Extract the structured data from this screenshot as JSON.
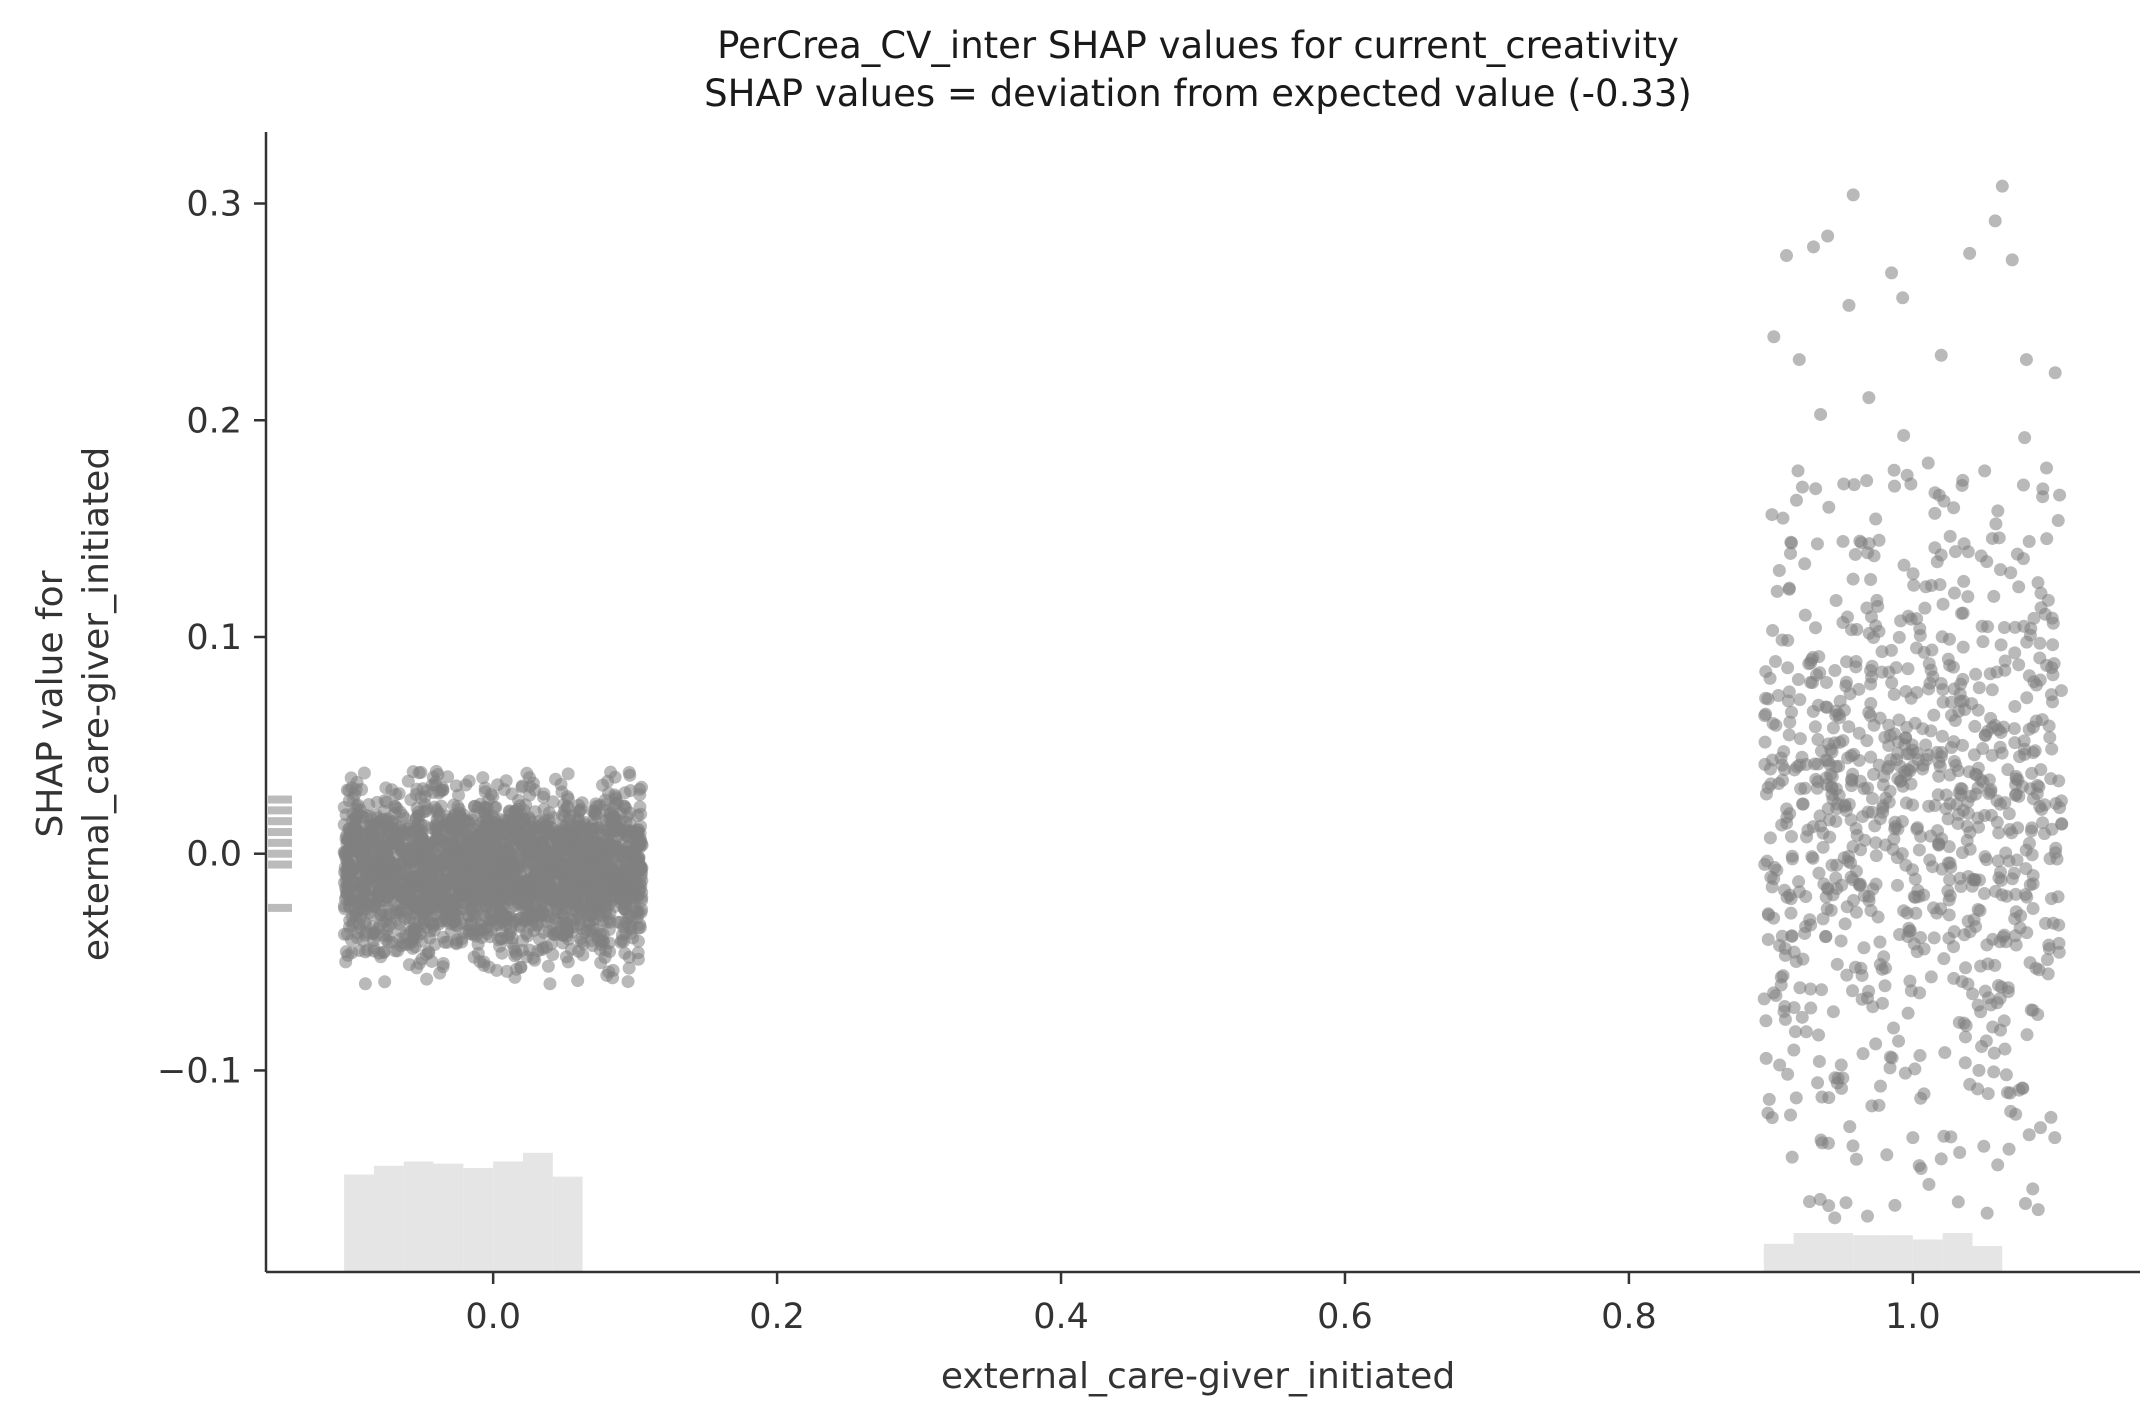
{
  "chart_data": {
    "type": "scatter",
    "title": "PerCrea_CV_inter SHAP values for current_creativity",
    "subtitle": "SHAP values = deviation from expected value (-0.33)",
    "xlabel": "external_care-giver_initiated",
    "ylabel_line1": "SHAP value for",
    "ylabel_line2": "external_care-giver_initiated",
    "xlim": [
      -0.16,
      1.16
    ],
    "ylim": [
      -0.193,
      0.333
    ],
    "xticks": [
      0.0,
      0.2,
      0.4,
      0.6,
      0.8,
      1.0
    ],
    "xtick_labels": [
      "0.0",
      "0.2",
      "0.4",
      "0.6",
      "0.8",
      "1.0"
    ],
    "yticks": [
      -0.1,
      0.0,
      0.1,
      0.2,
      0.3
    ],
    "ytick_labels": [
      "−0.1",
      "0.0",
      "0.1",
      "0.2",
      "0.3"
    ],
    "grid": false,
    "point_color": "#7f7f7f",
    "histogram_color": "#e5e5e5",
    "clusters": [
      {
        "x_center": 0.0,
        "jitter": 0.105,
        "count": 2600,
        "y_mean": -0.008,
        "y_sd": 0.018,
        "y_min": -0.06,
        "y_max": 0.038,
        "sample_outliers": [
          {
            "x": -0.09,
            "y": -0.06
          },
          {
            "x": -0.04,
            "y": 0.038
          },
          {
            "x": 0.04,
            "y": -0.06
          },
          {
            "x": 0.095,
            "y": -0.059
          },
          {
            "x": -0.1,
            "y": 0.035
          }
        ]
      },
      {
        "x_center": 1.0,
        "jitter": 0.105,
        "count": 900,
        "y_mean": 0.02,
        "y_sd": 0.075,
        "y_min": -0.168,
        "y_max": 0.308,
        "sample_outliers": [
          {
            "x": 0.911,
            "y": 0.276
          },
          {
            "x": 0.92,
            "y": 0.228
          },
          {
            "x": 0.93,
            "y": 0.28
          },
          {
            "x": 0.94,
            "y": 0.285
          },
          {
            "x": 0.958,
            "y": 0.304
          },
          {
            "x": 0.955,
            "y": 0.253
          },
          {
            "x": 0.985,
            "y": 0.268
          },
          {
            "x": 1.02,
            "y": 0.23
          },
          {
            "x": 1.04,
            "y": 0.277
          },
          {
            "x": 1.058,
            "y": 0.292
          },
          {
            "x": 1.063,
            "y": 0.308
          },
          {
            "x": 1.07,
            "y": 0.274
          },
          {
            "x": 1.08,
            "y": 0.228
          },
          {
            "x": 0.945,
            "y": -0.168
          },
          {
            "x": 0.915,
            "y": -0.14
          },
          {
            "x": 1.0,
            "y": -0.131
          },
          {
            "x": 1.05,
            "y": -0.135
          },
          {
            "x": 1.1,
            "y": -0.131
          }
        ]
      }
    ],
    "left_marginal_ticks": [
      0.025,
      0.02,
      0.015,
      0.01,
      0.005,
      0.0,
      -0.005,
      -0.025
    ],
    "x_histogram": {
      "bins": [
        {
          "x0": -0.105,
          "x1": -0.084,
          "height": 0.045
        },
        {
          "x0": -0.084,
          "x1": -0.063,
          "height": 0.049
        },
        {
          "x0": -0.063,
          "x1": -0.042,
          "height": 0.051
        },
        {
          "x0": -0.042,
          "x1": -0.021,
          "height": 0.05
        },
        {
          "x0": -0.021,
          "x1": 0.0,
          "height": 0.048
        },
        {
          "x0": 0.0,
          "x1": 0.021,
          "height": 0.051
        },
        {
          "x0": 0.021,
          "x1": 0.042,
          "height": 0.055
        },
        {
          "x0": 0.042,
          "x1": 0.063,
          "height": 0.044
        },
        {
          "x0": 0.895,
          "x1": 0.916,
          "height": 0.013
        },
        {
          "x0": 0.916,
          "x1": 0.937,
          "height": 0.018
        },
        {
          "x0": 0.937,
          "x1": 0.958,
          "height": 0.018
        },
        {
          "x0": 0.958,
          "x1": 0.979,
          "height": 0.017
        },
        {
          "x0": 0.979,
          "x1": 1.0,
          "height": 0.017
        },
        {
          "x0": 1.0,
          "x1": 1.021,
          "height": 0.015
        },
        {
          "x0": 1.021,
          "x1": 1.042,
          "height": 0.018
        },
        {
          "x0": 1.042,
          "x1": 1.063,
          "height": 0.012
        }
      ]
    }
  }
}
